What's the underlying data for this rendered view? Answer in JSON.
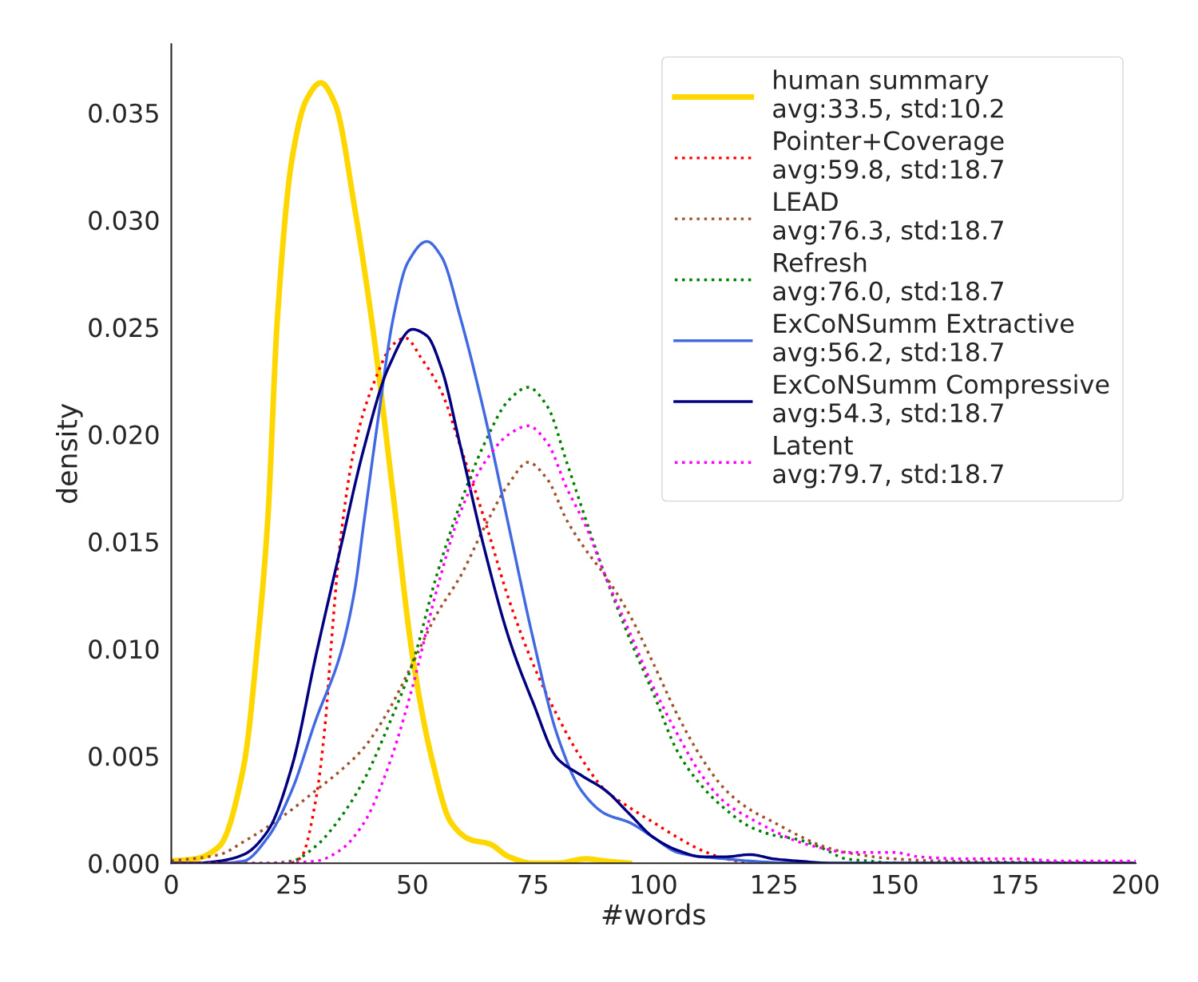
{
  "chart_data": {
    "type": "line",
    "xlabel": "#words",
    "ylabel": "density",
    "xlim": [
      0,
      200
    ],
    "ylim": [
      0,
      0.0382
    ],
    "xticks": [
      0,
      25,
      50,
      75,
      100,
      125,
      150,
      175,
      200
    ],
    "yticks": [
      {
        "value": 0,
        "label": "0.000"
      },
      {
        "value": 0.005,
        "label": "0.005"
      },
      {
        "value": 0.01,
        "label": "0.010"
      },
      {
        "value": 0.015,
        "label": "0.015"
      },
      {
        "value": 0.02,
        "label": "0.020"
      },
      {
        "value": 0.025,
        "label": "0.025"
      },
      {
        "value": 0.03,
        "label": "0.030"
      },
      {
        "value": 0.035,
        "label": "0.035"
      }
    ],
    "grid": false,
    "legend": "top right",
    "marker": "none",
    "series": [
      {
        "name": "human summary\navg:33.5, std:10.2",
        "color": "#ffd700",
        "line_style": "solid",
        "x": [
          0,
          5,
          10,
          15,
          18,
          20,
          22,
          25,
          28,
          31,
          34,
          38,
          42,
          46,
          50,
          54,
          58,
          62,
          66,
          70,
          75,
          80,
          86,
          90,
          95
        ],
        "values": [
          0.0001,
          0.0002,
          0.0008,
          0.0045,
          0.0105,
          0.016,
          0.0254,
          0.0328,
          0.0356,
          0.0364,
          0.0354,
          0.0306,
          0.0246,
          0.0172,
          0.0097,
          0.0049,
          0.0019,
          0.0011,
          0.0009,
          0.0003,
          0,
          0,
          0.0002,
          0.0001,
          0
        ]
      },
      {
        "name": "Pointer+Coverage\navg:59.8, std:18.7",
        "color": "#ff0000",
        "line_style": "dotted",
        "x": [
          25,
          27,
          30,
          32,
          33,
          35,
          38,
          42,
          46,
          48.5,
          52,
          56,
          60,
          65,
          70,
          75,
          80,
          85,
          90,
          95,
          100,
          105,
          110,
          115,
          120
        ],
        "values": [
          0,
          0.0003,
          0.003,
          0.0067,
          0.0097,
          0.0149,
          0.0194,
          0.0224,
          0.0242,
          0.0245,
          0.0235,
          0.022,
          0.0194,
          0.016,
          0.0123,
          0.0093,
          0.0069,
          0.0049,
          0.0034,
          0.0026,
          0.0019,
          0.0012,
          0.0006,
          0.0002,
          0
        ]
      },
      {
        "name": "LEAD\navg:76.3, std:18.7",
        "color": "#a0522d",
        "line_style": "dotted",
        "x": [
          0,
          10,
          15,
          20,
          25,
          30,
          35,
          40,
          45,
          50,
          55,
          60,
          65,
          70,
          74,
          78,
          82,
          86,
          90,
          95,
          100,
          105,
          110,
          115,
          120,
          125,
          130,
          135,
          140,
          150,
          160,
          200
        ],
        "values": [
          0.0001,
          0.0004,
          0.001,
          0.0017,
          0.0025,
          0.0034,
          0.0043,
          0.0054,
          0.0071,
          0.0093,
          0.0116,
          0.0134,
          0.0157,
          0.0177,
          0.0187,
          0.0179,
          0.016,
          0.0146,
          0.0134,
          0.0116,
          0.0093,
          0.0069,
          0.0049,
          0.0034,
          0.0025,
          0.0019,
          0.0013,
          0.0008,
          0.0005,
          0.0002,
          0.0001,
          0
        ]
      },
      {
        "name": "Refresh\navg:76.0, std:18.7",
        "color": "#008000",
        "line_style": "dotted",
        "x": [
          0,
          20,
          25,
          30,
          35,
          40,
          45,
          50,
          55,
          60,
          65,
          70,
          74,
          78,
          82,
          86,
          90,
          95,
          100,
          105,
          110,
          115,
          120,
          125,
          130,
          135,
          140,
          145,
          150,
          200
        ],
        "values": [
          0,
          0,
          0.0001,
          0.0008,
          0.0021,
          0.0039,
          0.0064,
          0.0093,
          0.0134,
          0.0168,
          0.0196,
          0.0216,
          0.0222,
          0.0213,
          0.0187,
          0.016,
          0.0134,
          0.0105,
          0.0079,
          0.0052,
          0.0036,
          0.0025,
          0.0017,
          0.0013,
          0.0011,
          0.0007,
          0.0002,
          0.0001,
          0,
          0
        ]
      },
      {
        "name": "ExCoNSumm Extractive\navg:56.2, std:18.7",
        "color": "#4169e1",
        "line_style": "solid",
        "x": [
          0,
          10,
          15,
          20,
          25,
          30,
          35,
          38,
          40,
          43,
          46,
          49,
          53,
          56,
          60,
          65,
          70,
          75,
          80,
          85,
          90,
          95,
          100,
          105,
          110,
          115,
          120,
          130,
          200
        ],
        "values": [
          0,
          0,
          0.0001,
          0.0012,
          0.0034,
          0.0067,
          0.0097,
          0.0127,
          0.016,
          0.0209,
          0.0254,
          0.028,
          0.029,
          0.0283,
          0.0254,
          0.0209,
          0.0157,
          0.0105,
          0.006,
          0.0034,
          0.0023,
          0.0019,
          0.0012,
          0.0005,
          0.0003,
          0.0002,
          0.0001,
          0,
          0
        ]
      },
      {
        "name": "ExCoNSumm Compressive\navg:54.3, std:18.7",
        "color": "#000080",
        "line_style": "solid",
        "x": [
          0,
          5,
          10,
          15,
          20,
          25,
          30,
          35,
          40,
          45,
          50,
          53,
          56,
          60,
          65,
          70,
          75,
          80,
          85,
          90,
          95,
          100,
          105,
          110,
          115,
          120,
          125,
          130,
          137,
          200
        ],
        "values": [
          0,
          0,
          0.0001,
          0.0004,
          0.0015,
          0.0045,
          0.0097,
          0.0146,
          0.0194,
          0.0231,
          0.0249,
          0.0246,
          0.0231,
          0.0194,
          0.0146,
          0.0105,
          0.0075,
          0.0049,
          0.0041,
          0.0034,
          0.0023,
          0.0012,
          0.0006,
          0.0003,
          0.0003,
          0.0004,
          0.0002,
          0.0001,
          0,
          0
        ]
      },
      {
        "name": "Latent\navg:79.7, std:18.7",
        "color": "#ff00ff",
        "line_style": "dotted",
        "x": [
          0,
          20,
          30,
          35,
          40,
          45,
          50,
          55,
          60,
          65,
          70,
          74,
          78,
          82,
          86,
          90,
          95,
          100,
          105,
          110,
          115,
          120,
          125,
          130,
          135,
          140,
          145,
          150,
          155,
          165,
          175,
          185,
          200
        ],
        "values": [
          0,
          0,
          0.0001,
          0.0006,
          0.0019,
          0.0045,
          0.0082,
          0.0127,
          0.0164,
          0.0187,
          0.02,
          0.0204,
          0.0196,
          0.0175,
          0.0157,
          0.0134,
          0.0108,
          0.0082,
          0.006,
          0.0041,
          0.0028,
          0.0021,
          0.0015,
          0.001,
          0.0007,
          0.0005,
          0.0005,
          0.0005,
          0.0003,
          0.0002,
          0.0002,
          0.0001,
          0.0001
        ]
      }
    ]
  }
}
